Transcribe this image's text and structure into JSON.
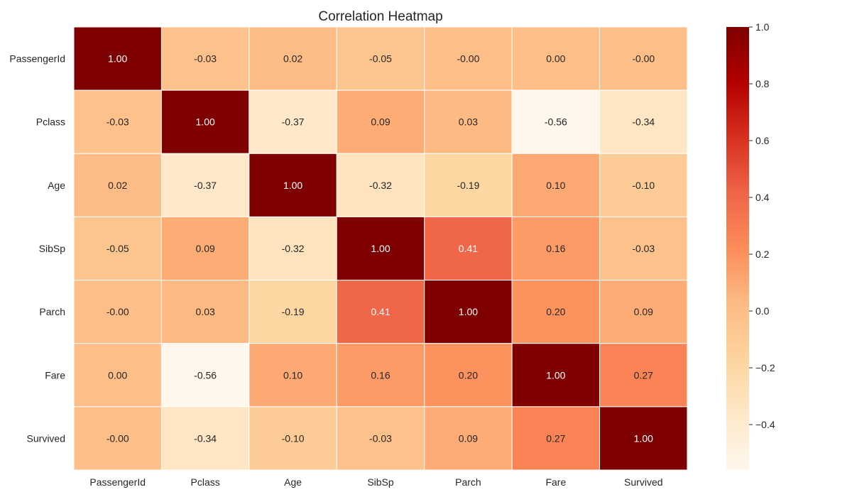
{
  "chart_data": {
    "type": "heatmap",
    "title": "Correlation Heatmap",
    "xlabel": "",
    "ylabel": "",
    "x_labels": [
      "PassengerId",
      "Pclass",
      "Age",
      "SibSp",
      "Parch",
      "Fare",
      "Survived"
    ],
    "y_labels": [
      "PassengerId",
      "Pclass",
      "Age",
      "SibSp",
      "Parch",
      "Fare",
      "Survived"
    ],
    "values": [
      [
        1.0,
        -0.03,
        0.02,
        -0.05,
        -0.0,
        0.0,
        -0.0
      ],
      [
        -0.03,
        1.0,
        -0.37,
        0.09,
        0.03,
        -0.56,
        -0.34
      ],
      [
        0.02,
        -0.37,
        1.0,
        -0.32,
        -0.19,
        0.1,
        -0.1
      ],
      [
        -0.05,
        0.09,
        -0.32,
        1.0,
        0.41,
        0.16,
        -0.03
      ],
      [
        -0.0,
        0.03,
        -0.19,
        0.41,
        1.0,
        0.2,
        0.09
      ],
      [
        0.0,
        -0.56,
        0.1,
        0.16,
        0.2,
        1.0,
        0.27
      ],
      [
        -0.0,
        -0.34,
        -0.1,
        -0.03,
        0.09,
        0.27,
        1.0
      ]
    ],
    "annotation_format": "0.00",
    "colormap": "OrRd",
    "color_range": [
      -0.56,
      1.0
    ],
    "colorbar": {
      "ticks": [
        1.0,
        0.8,
        0.6,
        0.4,
        0.2,
        0.0,
        -0.2,
        -0.4
      ],
      "tick_labels": [
        "1.0",
        "0.8",
        "0.6",
        "0.4",
        "0.2",
        "0.0",
        "−0.2",
        "−0.4"
      ],
      "position": "right"
    },
    "grid": false,
    "cell_separator_color": "#ffffff"
  }
}
